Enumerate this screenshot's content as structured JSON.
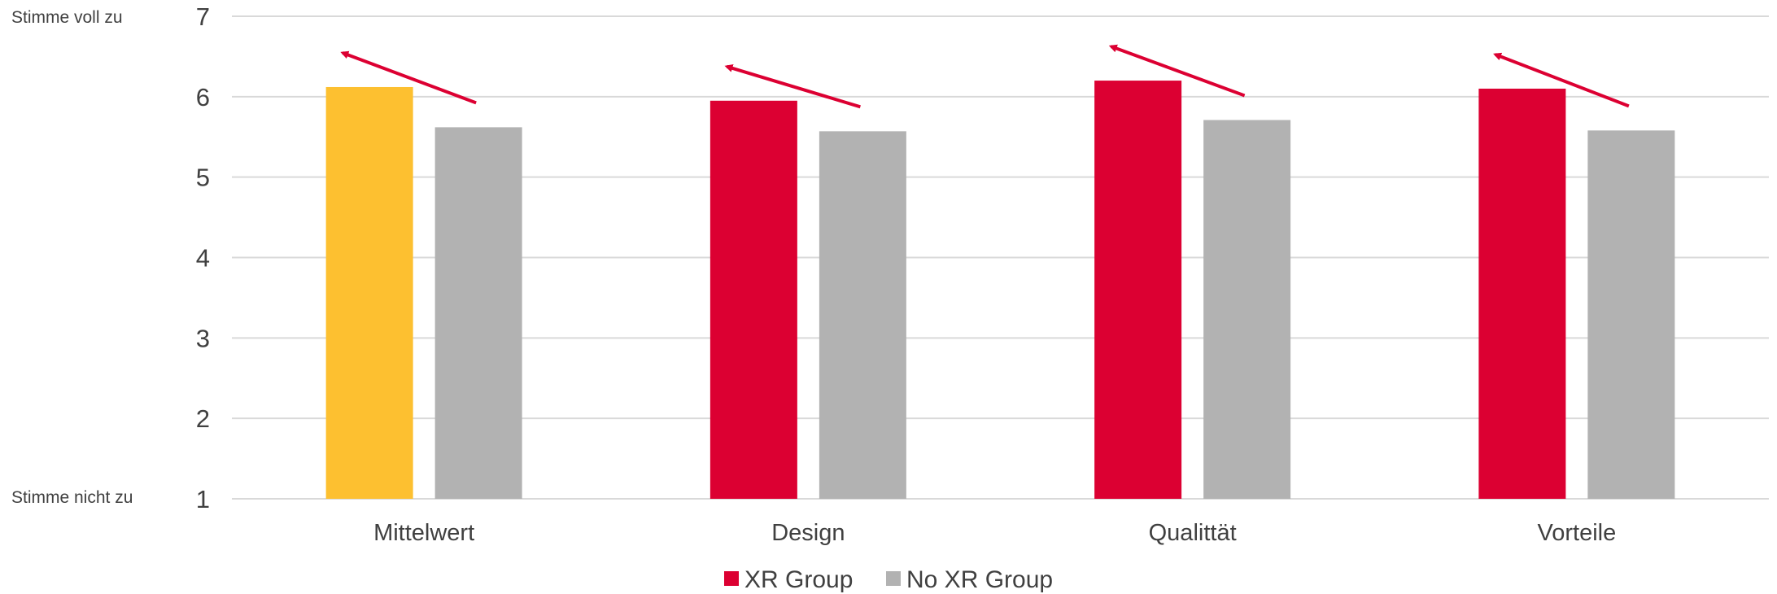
{
  "chart_data": {
    "type": "bar",
    "categories": [
      "Mittelwert",
      "Design",
      "Qualittät",
      "Vorteile"
    ],
    "series": [
      {
        "name": "XR Group",
        "values": [
          6.12,
          5.95,
          6.2,
          6.1
        ]
      },
      {
        "name": "No XR Group",
        "values": [
          5.62,
          5.57,
          5.71,
          5.58
        ]
      }
    ],
    "ylim": [
      1,
      7
    ],
    "yticks": [
      1,
      2,
      3,
      4,
      5,
      6,
      7
    ],
    "y_anchor_labels": {
      "top": "Stimme voll zu",
      "bottom": "Stimme nicht zu"
    },
    "grid": true,
    "legend": "bottom",
    "annotations": "red arrow above each category pointing from the No XR Group bar up-left toward the XR Group bar"
  },
  "colors": {
    "xr": "#DC0032",
    "xr_first": "#FDC030",
    "no_xr": "#B2B2B2",
    "arrow": "#DC0032",
    "grid": "#D9D9D9",
    "text": "#404040"
  }
}
